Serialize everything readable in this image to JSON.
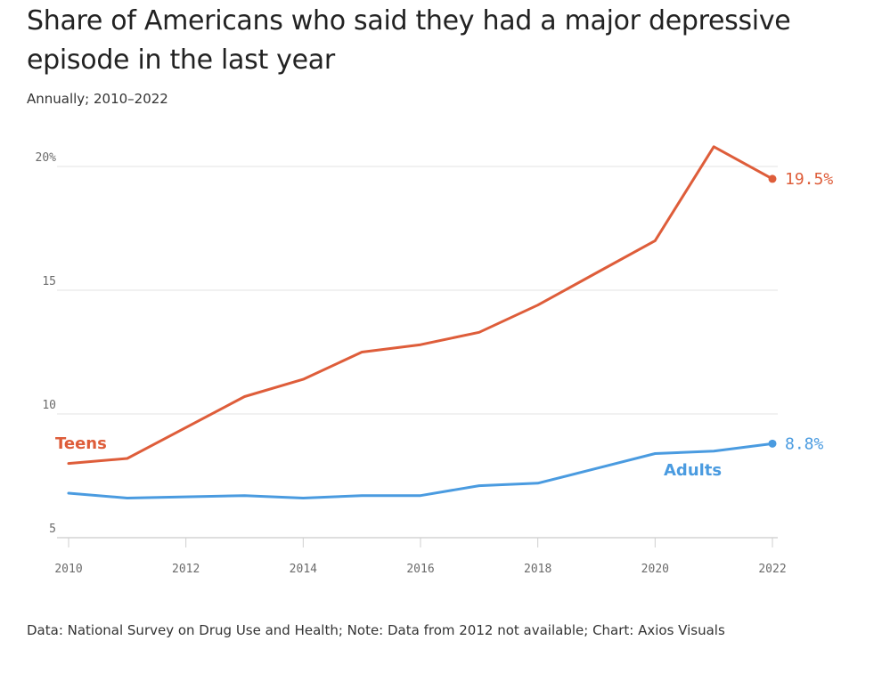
{
  "title": "Share of Americans who said they had a major depressive episode in the last year",
  "subtitle": "Annually; 2010–2022",
  "source": "Data: National Survey on Drug Use and Health; Note: Data from 2012 not available; Chart: Axios Visuals",
  "chart_data": {
    "type": "line",
    "title": "Share of Americans who said they had a major depressive episode in the last year",
    "subtitle": "Annually; 2010–2022",
    "xlabel": "",
    "ylabel": "",
    "xlim": [
      2010,
      2022
    ],
    "ylim": [
      5,
      22
    ],
    "grid": "horizontal",
    "x_ticks": [
      2010,
      2012,
      2014,
      2016,
      2018,
      2020,
      2022
    ],
    "x_tick_labels": [
      "2010",
      "2012",
      "2014",
      "2016",
      "2018",
      "2020",
      "2022"
    ],
    "y_ticks": [
      5,
      10,
      15,
      20
    ],
    "y_tick_labels": [
      "5",
      "10",
      "15",
      "20%"
    ],
    "series": [
      {
        "name": "Teens",
        "color": "#de5d3a",
        "x": [
          2010,
          2011,
          2013,
          2014,
          2015,
          2016,
          2017,
          2018,
          2019,
          2020,
          2021,
          2022
        ],
        "values": [
          8.0,
          8.2,
          10.7,
          11.4,
          12.5,
          12.8,
          13.3,
          14.4,
          15.7,
          17.0,
          20.8,
          19.5
        ],
        "end_label": "19.5%"
      },
      {
        "name": "Adults",
        "color": "#4a9be0",
        "x": [
          2010,
          2011,
          2013,
          2014,
          2015,
          2016,
          2017,
          2018,
          2019,
          2020,
          2021,
          2022
        ],
        "values": [
          6.8,
          6.6,
          6.7,
          6.6,
          6.7,
          6.7,
          7.1,
          7.2,
          7.8,
          8.4,
          8.5,
          8.8
        ],
        "end_label": "8.8%"
      }
    ]
  }
}
